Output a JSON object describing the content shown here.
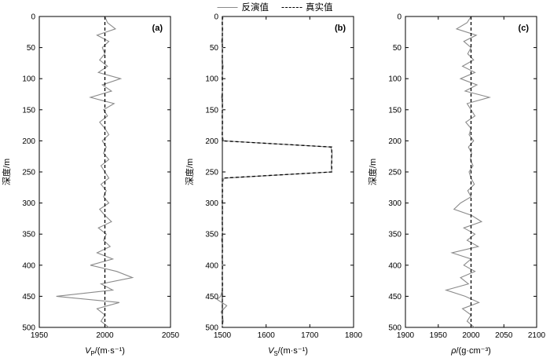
{
  "legend": {
    "position": "top-center",
    "entries": [
      {
        "label": "反演值",
        "style": "solid",
        "color": "#8a8a8a"
      },
      {
        "label": "真实值",
        "style": "dashed",
        "color": "#000000"
      }
    ]
  },
  "chart_data": [
    {
      "type": "line",
      "panel_label": "(a)",
      "ylabel": "深度/m",
      "xlabel": {
        "var": "V",
        "sub": "P",
        "rest": "/(m·s⁻¹)"
      },
      "xlim": [
        1950,
        2050
      ],
      "ylim": [
        0,
        500
      ],
      "y_inverted": true,
      "grid": false,
      "xticks": [
        1950,
        2000,
        2050
      ],
      "yticks": [
        0,
        50,
        100,
        150,
        200,
        250,
        300,
        350,
        400,
        450,
        500
      ],
      "series": [
        {
          "name": "反演值",
          "style": "solid",
          "color": "#8a8a8a",
          "y": [
            0,
            10,
            20,
            30,
            40,
            50,
            60,
            70,
            80,
            90,
            100,
            110,
            120,
            130,
            140,
            150,
            160,
            170,
            180,
            190,
            200,
            210,
            220,
            230,
            240,
            250,
            260,
            270,
            280,
            290,
            300,
            310,
            320,
            330,
            340,
            350,
            360,
            370,
            380,
            390,
            400,
            410,
            420,
            430,
            440,
            450,
            460,
            470,
            480,
            490,
            500
          ],
          "x": [
            2000,
            2002,
            2008,
            1994,
            2003,
            1998,
            2000,
            1996,
            2002,
            1995,
            2012,
            1998,
            2005,
            1989,
            2007,
            1999,
            2002,
            1996,
            2000,
            2003,
            1998,
            2001,
            1999,
            2003,
            1997,
            2000,
            2003,
            1997,
            2001,
            1999,
            2003,
            1996,
            2000,
            2005,
            1995,
            2001,
            1999,
            2004,
            1994,
            2006,
            1989,
            2009,
            2021,
            1997,
            2006,
            1963,
            2011,
            1994,
            2000,
            1997,
            2003
          ]
        },
        {
          "name": "真实值",
          "style": "dashed",
          "color": "#000000",
          "y": [
            0,
            500
          ],
          "x": [
            2000,
            2000
          ]
        }
      ]
    },
    {
      "type": "line",
      "panel_label": "(b)",
      "ylabel": "深度/m",
      "xlabel": {
        "var": "V",
        "sub": "S",
        "rest": "/(m·s⁻¹)"
      },
      "xlim": [
        1500,
        1800
      ],
      "ylim": [
        0,
        500
      ],
      "y_inverted": true,
      "grid": false,
      "xticks": [
        1500,
        1600,
        1700,
        1800
      ],
      "yticks": [
        0,
        50,
        100,
        150,
        200,
        250,
        300,
        350,
        400,
        450,
        500
      ],
      "series": [
        {
          "name": "反演值",
          "style": "solid",
          "color": "#8a8a8a",
          "y": [
            0,
            10,
            20,
            30,
            40,
            50,
            60,
            70,
            80,
            90,
            100,
            110,
            120,
            130,
            140,
            150,
            160,
            170,
            180,
            190,
            200,
            210,
            220,
            230,
            240,
            250,
            260,
            270,
            280,
            290,
            300,
            310,
            320,
            330,
            340,
            350,
            360,
            370,
            380,
            390,
            400,
            410,
            420,
            430,
            440,
            450,
            455,
            465,
            475,
            480,
            490,
            500
          ],
          "x": [
            1502,
            1499,
            1501,
            1500,
            1498,
            1501,
            1500,
            1499,
            1502,
            1500,
            1499,
            1501,
            1500,
            1498,
            1501,
            1500,
            1499,
            1501,
            1500,
            1499,
            1503,
            1748,
            1751,
            1750,
            1749,
            1750,
            1504,
            1499,
            1501,
            1500,
            1499,
            1501,
            1500,
            1499,
            1501,
            1500,
            1498,
            1501,
            1500,
            1499,
            1501,
            1500,
            1499,
            1501,
            1500,
            1496,
            1488,
            1510,
            1497,
            1500,
            1502,
            1499
          ]
        },
        {
          "name": "真实值",
          "style": "dashed",
          "color": "#000000",
          "y": [
            0,
            200,
            210,
            250,
            260,
            500
          ],
          "x": [
            1500,
            1500,
            1750,
            1750,
            1500,
            1500
          ]
        }
      ]
    },
    {
      "type": "line",
      "panel_label": "(c)",
      "ylabel": "深度/m",
      "xlabel": {
        "var": "ρ",
        "sub": "",
        "rest": "/(g·cm⁻³)"
      },
      "xlim": [
        1900,
        2100
      ],
      "ylim": [
        0,
        500
      ],
      "y_inverted": true,
      "grid": false,
      "xticks": [
        1900,
        1950,
        2000,
        2050,
        2100
      ],
      "yticks": [
        0,
        50,
        100,
        150,
        200,
        250,
        300,
        350,
        400,
        450,
        500
      ],
      "series": [
        {
          "name": "反演值",
          "style": "solid",
          "color": "#8a8a8a",
          "y": [
            0,
            10,
            20,
            30,
            40,
            50,
            60,
            70,
            80,
            90,
            100,
            110,
            120,
            130,
            140,
            150,
            160,
            170,
            180,
            190,
            200,
            210,
            220,
            230,
            240,
            250,
            260,
            270,
            280,
            290,
            300,
            310,
            320,
            330,
            340,
            350,
            360,
            370,
            380,
            390,
            400,
            410,
            420,
            430,
            440,
            450,
            460,
            470,
            480,
            490,
            500
          ],
          "x": [
            2000,
            1994,
            1978,
            2008,
            1989,
            2000,
            1995,
            2004,
            1987,
            2006,
            1984,
            2009,
            1991,
            2028,
            1994,
            2000,
            2006,
            1992,
            2000,
            1997,
            2004,
            1996,
            2001,
            1999,
            2003,
            1997,
            2000,
            2005,
            1995,
            2000,
            1984,
            1974,
            2001,
            2016,
            1989,
            2006,
            1994,
            2011,
            1971,
            2000,
            1989,
            2006,
            1984,
            1996,
            1962,
            1991,
            2012,
            1987,
            2000,
            1994,
            2005
          ]
        },
        {
          "name": "真实值",
          "style": "dashed",
          "color": "#000000",
          "y": [
            0,
            500
          ],
          "x": [
            2000,
            2000
          ]
        }
      ]
    }
  ]
}
